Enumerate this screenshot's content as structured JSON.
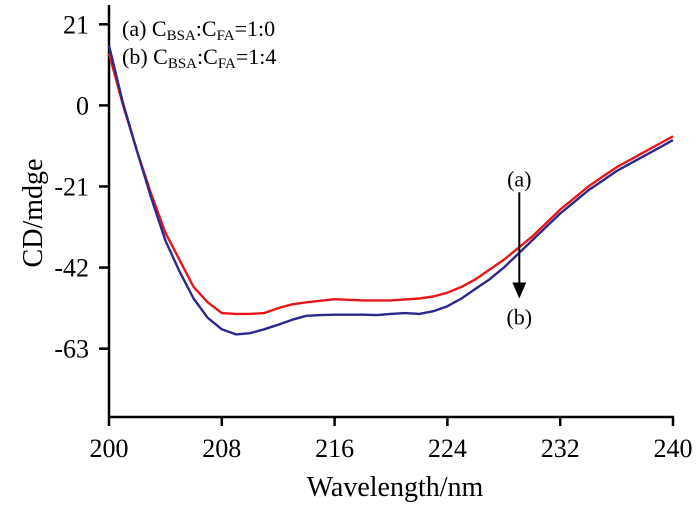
{
  "chart_data": {
    "type": "line",
    "title": "",
    "xlabel": "Wavelength/nm",
    "ylabel": "CD/mdge",
    "xlim": [
      200,
      240
    ],
    "ylim": [
      -80.7,
      26
    ],
    "xticks": [
      200,
      208,
      216,
      224,
      232,
      240
    ],
    "xtick_labels": [
      "200",
      "208",
      "216",
      "224",
      "232",
      "240"
    ],
    "yticks": [
      21,
      0,
      -21,
      -42,
      -63
    ],
    "ytick_labels": [
      "21",
      "0",
      "-21",
      "-42",
      "-63"
    ],
    "grid": false,
    "legend_position": "top-left",
    "legend": [
      {
        "prefix": "(a) C",
        "sub1": "BSA",
        "mid": ":C",
        "sub2": "FA",
        "suffix": "=1:0"
      },
      {
        "prefix": "(b) C",
        "sub1": "BSA",
        "mid": ":C",
        "sub2": "FA",
        "suffix": "=1:4"
      }
    ],
    "series": [
      {
        "name": "(a) CBSA:CFA=1:0",
        "color": "#e8161b",
        "x": [
          200,
          201,
          202,
          203,
          204,
          205,
          206,
          207,
          208,
          209,
          210,
          211,
          212,
          213,
          214,
          216,
          218,
          220,
          222,
          223,
          224,
          225,
          226,
          227,
          228,
          229,
          230,
          231,
          232,
          233,
          234,
          235,
          236,
          237,
          238,
          239,
          240
        ],
        "y": [
          13.5,
          0,
          -12,
          -23,
          -33,
          -40,
          -47,
          -51,
          -53.8,
          -54,
          -54,
          -53.8,
          -52.5,
          -51.5,
          -51,
          -50.2,
          -50.5,
          -50.5,
          -50,
          -49.5,
          -48.5,
          -47,
          -45,
          -42.5,
          -40,
          -37,
          -34,
          -30.5,
          -27,
          -24,
          -21,
          -18.5,
          -16,
          -14,
          -12,
          -10,
          -8
        ]
      },
      {
        "name": "(b) CBSA:CFA=1:4",
        "color": "#2b2a8c",
        "x": [
          200,
          201,
          202,
          203,
          204,
          205,
          206,
          207,
          208,
          209,
          210,
          211,
          212,
          213,
          214,
          215,
          216,
          218,
          219,
          220,
          221,
          222,
          223,
          224,
          225,
          226,
          227,
          228,
          229,
          230,
          231,
          232,
          233,
          234,
          235,
          236,
          237,
          238,
          239,
          240
        ],
        "y": [
          15.5,
          0.5,
          -12,
          -24,
          -35,
          -43,
          -50,
          -55,
          -58,
          -59.3,
          -59,
          -58,
          -56.8,
          -55.5,
          -54.5,
          -54.3,
          -54.2,
          -54.2,
          -54.3,
          -54,
          -53.8,
          -54,
          -53.3,
          -52,
          -50,
          -47.5,
          -45,
          -42,
          -38.5,
          -35,
          -31.5,
          -28,
          -25,
          -22,
          -19.5,
          -17,
          -15,
          -13,
          -11,
          -9
        ]
      }
    ],
    "annotations": {
      "arrow_from_label": "(a)",
      "arrow_to_label": "(b)",
      "arrow_x": 229.1,
      "arrow_y_from": -22.5,
      "arrow_y_to": -50
    }
  }
}
